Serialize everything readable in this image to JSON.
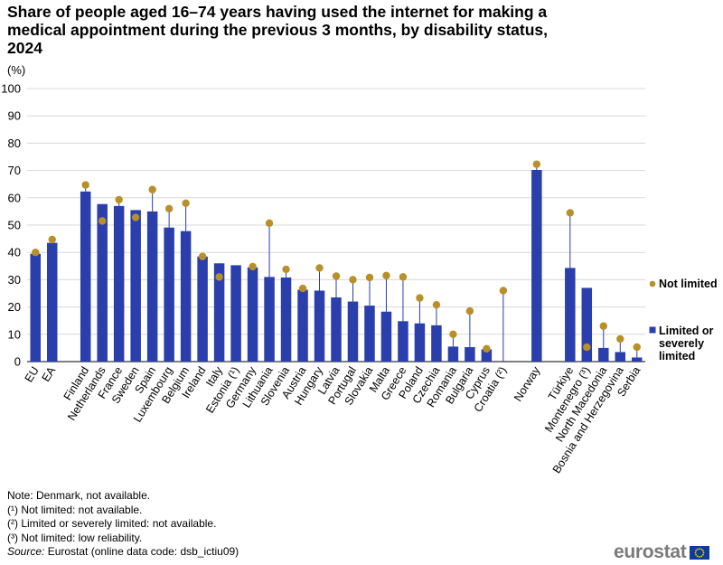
{
  "title": "Share of people aged 16–74 years having used the internet for making a medical appointment during the previous 3 months, by disability status, 2024",
  "unit": "(%)",
  "notes": [
    "Note: Denmark, not available.",
    "(¹) Not limited: not available.",
    "(²) Limited or severely limited: not available.",
    "(³) Not limited: low reliability."
  ],
  "source_label": "Source:",
  "source_text": " Eurostat (online data code: dsb_ictiu09)",
  "logo_text": "eurostat",
  "colors": {
    "bar": "#2a3fab",
    "dot": "#b8902a",
    "grid": "#d9d9d9",
    "line": "#2a3fab"
  },
  "chart_data": {
    "type": "bar",
    "title": "Share of people aged 16–74 years having used the internet for making a medical appointment during the previous 3 months, by disability status, 2024",
    "ylabel": "(%)",
    "ylim": [
      0,
      100
    ],
    "yticks": [
      0,
      10,
      20,
      30,
      40,
      50,
      60,
      70,
      80,
      90,
      100
    ],
    "grid": true,
    "legend_position": "right",
    "legend": [
      {
        "name": "Not limited",
        "marker": "dot"
      },
      {
        "name": "Limited or severely limited",
        "marker": "square",
        "lines": [
          "Limited or",
          "severely",
          "limited"
        ]
      }
    ],
    "categories": [
      {
        "label": "EU",
        "limited": 39.5,
        "not_limited": 40.0
      },
      {
        "label": "EA",
        "limited": 43.5,
        "not_limited": 44.7
      },
      {
        "label": "",
        "gap": true
      },
      {
        "label": "Finland",
        "limited": 62.3,
        "not_limited": 64.7
      },
      {
        "label": "Netherlands",
        "limited": 57.7,
        "not_limited": 51.5
      },
      {
        "label": "France",
        "limited": 57.0,
        "not_limited": 59.3
      },
      {
        "label": "Sweden",
        "limited": 55.5,
        "not_limited": 52.8
      },
      {
        "label": "Spain",
        "limited": 55.0,
        "not_limited": 63.0
      },
      {
        "label": "Luxembourg",
        "limited": 49.1,
        "not_limited": 56.0
      },
      {
        "label": "Belgium",
        "limited": 47.8,
        "not_limited": 58.0
      },
      {
        "label": "Ireland",
        "limited": 38.5,
        "not_limited": 38.5
      },
      {
        "label": "Italy",
        "limited": 36.0,
        "not_limited": 31.0
      },
      {
        "label": "Estonia (¹)",
        "limited": 35.3,
        "not_limited": null
      },
      {
        "label": "Germany",
        "limited": 34.5,
        "not_limited": 34.8
      },
      {
        "label": "Lithuania",
        "limited": 31.0,
        "not_limited": 50.7
      },
      {
        "label": "Slovenia",
        "limited": 30.8,
        "not_limited": 33.8
      },
      {
        "label": "Austria",
        "limited": 26.3,
        "not_limited": 26.8
      },
      {
        "label": "Hungary",
        "limited": 26.0,
        "not_limited": 34.3
      },
      {
        "label": "Latvia",
        "limited": 23.5,
        "not_limited": 31.3
      },
      {
        "label": "Portugal",
        "limited": 22.0,
        "not_limited": 30.0
      },
      {
        "label": "Slovakia",
        "limited": 20.5,
        "not_limited": 30.8
      },
      {
        "label": "Malta",
        "limited": 18.3,
        "not_limited": 31.5
      },
      {
        "label": "Greece",
        "limited": 14.8,
        "not_limited": 31.0
      },
      {
        "label": "Poland",
        "limited": 14.0,
        "not_limited": 23.3
      },
      {
        "label": "Czechia",
        "limited": 13.3,
        "not_limited": 20.8
      },
      {
        "label": "Romania",
        "limited": 5.5,
        "not_limited": 10.0
      },
      {
        "label": "Bulgaria",
        "limited": 5.3,
        "not_limited": 18.5
      },
      {
        "label": "Cyprus",
        "limited": 4.5,
        "not_limited": 4.7
      },
      {
        "label": "Croatia (²)",
        "limited": null,
        "not_limited": 26.0
      },
      {
        "label": "",
        "gap": true
      },
      {
        "label": "Norway",
        "limited": 70.2,
        "not_limited": 72.3
      },
      {
        "label": "",
        "gap": true
      },
      {
        "label": "Türkiye",
        "limited": 34.3,
        "not_limited": 54.5
      },
      {
        "label": "Montenegro (³)",
        "limited": 27.0,
        "not_limited": 5.3
      },
      {
        "label": "North Macedonia",
        "limited": 5.0,
        "not_limited": 13.0
      },
      {
        "label": "Bosnia and Herzegovina",
        "limited": 3.5,
        "not_limited": 8.3
      },
      {
        "label": "Serbia",
        "limited": 1.5,
        "not_limited": 5.3
      }
    ]
  }
}
